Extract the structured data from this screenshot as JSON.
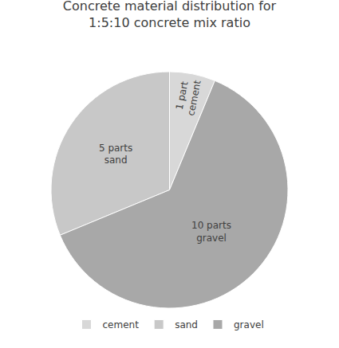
{
  "chart_data": {
    "type": "pie",
    "title": "Concrete material distribution for\n1:5:10 concrete mix ratio",
    "categories": [
      "cement",
      "sand",
      "gravel"
    ],
    "values": [
      1,
      5,
      10
    ],
    "value_labels": [
      "1 part\ncement",
      "5 parts\nsand",
      "10 parts\ngravel"
    ],
    "colors": [
      "#d8d8d8",
      "#c8c8c8",
      "#a8a8a8"
    ],
    "data_labels": true,
    "legend": "bottom"
  }
}
